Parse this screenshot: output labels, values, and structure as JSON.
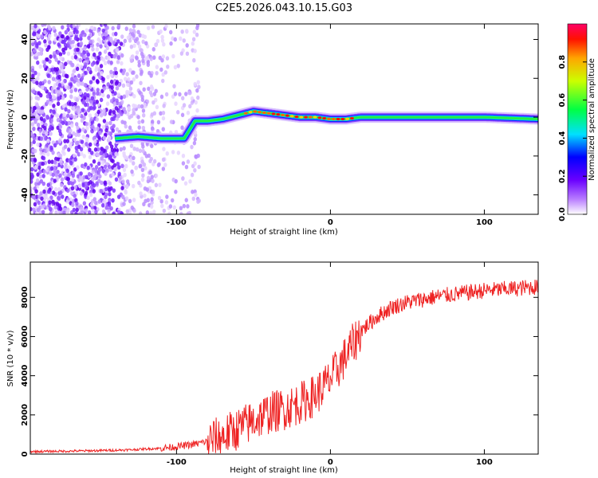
{
  "title": "C2E5.2026.043.10.15.G03",
  "chart_data": [
    {
      "type": "heatmap",
      "xlabel": "Height of straight line (km)",
      "ylabel": "Frequency (Hz)",
      "xlim": [
        -195,
        135
      ],
      "ylim": [
        -50,
        48
      ],
      "xticks": [
        -100,
        0,
        100
      ],
      "yticks": [
        -40,
        -20,
        0,
        20,
        40
      ],
      "colorbar": {
        "label": "Normalized spectral amplitude",
        "range": [
          0,
          1
        ],
        "ticks": [
          "0.0",
          "0.2",
          "0.4",
          "0.6",
          "0.8"
        ]
      },
      "ridge": {
        "x": [
          -140,
          -125,
          -110,
          -95,
          -88,
          -80,
          -70,
          -60,
          -50,
          -40,
          -30,
          -20,
          -10,
          0,
          10,
          20,
          50,
          100,
          135
        ],
        "y": [
          -11,
          -10,
          -11,
          -11,
          -2,
          -2,
          -1,
          1,
          3,
          2,
          1,
          0,
          0,
          -1,
          -1,
          0,
          0,
          0,
          -1
        ]
      }
    },
    {
      "type": "line",
      "xlabel": "Height of straight line (km)",
      "ylabel": "SNR (10 * v/v)",
      "xlim": [
        -195,
        135
      ],
      "ylim": [
        0,
        9800
      ],
      "xticks": [
        -100,
        0,
        100
      ],
      "yticks": [
        0,
        2000,
        4000,
        6000,
        8000
      ],
      "series": [
        {
          "name": "SNR",
          "color": "#ee2222",
          "x": [
            -195,
            -170,
            -150,
            -130,
            -120,
            -110,
            -100,
            -90,
            -80,
            -70,
            -60,
            -50,
            -40,
            -30,
            -20,
            -10,
            0,
            10,
            20,
            30,
            40,
            50,
            60,
            70,
            80,
            90,
            100,
            110,
            120,
            135
          ],
          "y": [
            130,
            150,
            180,
            220,
            260,
            300,
            380,
            480,
            650,
            900,
            1300,
            1700,
            2100,
            2300,
            2600,
            3000,
            3800,
            5000,
            6300,
            7000,
            7500,
            7750,
            7900,
            8050,
            8150,
            8250,
            8350,
            8400,
            8450,
            8550
          ]
        }
      ]
    }
  ]
}
